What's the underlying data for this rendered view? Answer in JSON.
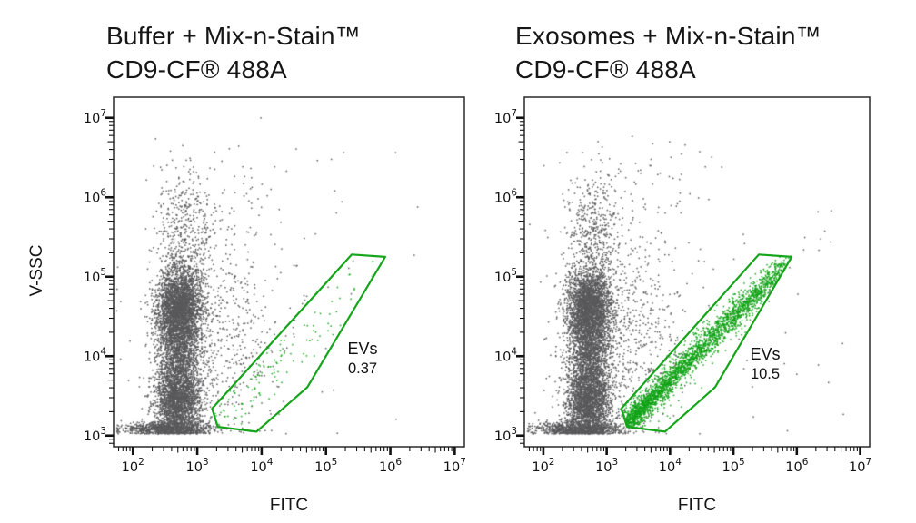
{
  "figure": {
    "background": "#ffffff",
    "dot_color_debris": "#59595b",
    "dot_color_events": "#12a317",
    "gate_color": "#16a51a"
  },
  "panels": [
    {
      "title_line1": "Buffer + Mix-n-Stain™",
      "title_line2": "CD9-CF® 488A"
    },
    {
      "title_line1": "Exosomes + Mix-n-Stain™",
      "title_line2": "CD9-CF® 488A"
    }
  ],
  "chart_data": [
    {
      "type": "scatter",
      "title": "Buffer + Mix-n-Stain™ CD9-CF® 488A",
      "xlabel": "FITC",
      "ylabel": "V-SSC",
      "x_scale": "log",
      "y_scale": "log",
      "x_tick_exponents": [
        2,
        3,
        4,
        5,
        6,
        7
      ],
      "y_tick_exponents": [
        3,
        4,
        5,
        6,
        7
      ],
      "xlim_log": [
        1.7,
        7.15
      ],
      "ylim_log": [
        2.86,
        7.26
      ],
      "grid": false,
      "gate": {
        "label": "EVs",
        "percent": 0.37,
        "percent_label": "0.37",
        "vertices_log": [
          [
            5.4,
            5.28
          ],
          [
            5.92,
            5.25
          ],
          [
            4.71,
            3.61
          ],
          [
            3.92,
            3.05
          ],
          [
            3.32,
            3.11
          ],
          [
            3.23,
            3.34
          ]
        ]
      },
      "populations": [
        {
          "name": "debris-core-upper",
          "kind": "gauss",
          "n": 2700,
          "cx": 2.71,
          "sx": 0.17,
          "cy": 4.62,
          "sy": 0.24,
          "clip_y": [
            3.03,
            7.1
          ],
          "color": "#59595b"
        },
        {
          "name": "debris-core-mid",
          "kind": "gauss",
          "n": 1400,
          "cx": 2.71,
          "sx": 0.16,
          "cy": 4.05,
          "sy": 0.28,
          "clip_y": [
            3.03,
            7.1
          ],
          "color": "#59595b"
        },
        {
          "name": "debris-core-lower",
          "kind": "gauss",
          "n": 2200,
          "cx": 2.7,
          "sx": 0.18,
          "cy": 3.42,
          "sy": 0.22,
          "clip_y": [
            3.03,
            7.1
          ],
          "color": "#59595b"
        },
        {
          "name": "debris-bottom-strip",
          "kind": "gauss",
          "n": 900,
          "cx": 2.55,
          "sx": 0.35,
          "cy": 3.09,
          "sy": 0.045,
          "clip_y": [
            3.03,
            7.1
          ],
          "color": "#59595b"
        },
        {
          "name": "debris-upper-tail",
          "kind": "gauss",
          "n": 520,
          "cx": 2.8,
          "sx": 0.22,
          "cy": 5.45,
          "sy": 0.45,
          "clip_y": [
            3.03,
            6.95
          ],
          "color": "#59595b"
        },
        {
          "name": "debris-right-scatter",
          "kind": "gauss",
          "n": 620,
          "cx": 3.25,
          "sx": 0.5,
          "cy": 4.25,
          "sy": 0.6,
          "clip_y": [
            3.03,
            7.0
          ],
          "color": "#59595b"
        },
        {
          "name": "debris-sparse-high",
          "kind": "gauss",
          "n": 85,
          "cx": 3.5,
          "sx": 0.7,
          "cy": 5.9,
          "sy": 0.55,
          "clip_y": [
            3.03,
            7.05
          ],
          "color": "#59595b"
        },
        {
          "name": "debris-far-sparse",
          "kind": "gauss",
          "n": 55,
          "cx": 4.1,
          "sx": 1.1,
          "cy": 4.6,
          "sy": 1.0,
          "clip_y": [
            3.03,
            7.1
          ],
          "color": "#59595b"
        },
        {
          "name": "ev-events",
          "kind": "band",
          "n": 130,
          "x0": 3.3,
          "x1": 5.6,
          "skew": 1.3,
          "slope": 0.78,
          "y_at_x0": 3.18,
          "sx": 0.15,
          "sy": 0.2,
          "clip_y": [
            3.05,
            7.0
          ],
          "clip_gate": true,
          "color": "#12a317"
        }
      ]
    },
    {
      "type": "scatter",
      "title": "Exosomes + Mix-n-Stain™ CD9-CF® 488A",
      "xlabel": "FITC",
      "ylabel": "V-SSC",
      "x_scale": "log",
      "y_scale": "log",
      "x_tick_exponents": [
        2,
        3,
        4,
        5,
        6,
        7
      ],
      "y_tick_exponents": [
        3,
        4,
        5,
        6,
        7
      ],
      "xlim_log": [
        1.7,
        7.15
      ],
      "ylim_log": [
        2.86,
        7.26
      ],
      "grid": false,
      "gate": {
        "label": "EVs",
        "percent": 10.5,
        "percent_label": "10.5",
        "vertices_log": [
          [
            5.4,
            5.28
          ],
          [
            5.92,
            5.25
          ],
          [
            4.71,
            3.61
          ],
          [
            3.92,
            3.05
          ],
          [
            3.32,
            3.11
          ],
          [
            3.23,
            3.34
          ]
        ]
      },
      "populations": [
        {
          "name": "debris-core-upper",
          "kind": "gauss",
          "n": 2700,
          "cx": 2.71,
          "sx": 0.17,
          "cy": 4.62,
          "sy": 0.24,
          "clip_y": [
            3.03,
            7.1
          ],
          "color": "#59595b"
        },
        {
          "name": "debris-core-mid",
          "kind": "gauss",
          "n": 1400,
          "cx": 2.71,
          "sx": 0.16,
          "cy": 4.05,
          "sy": 0.28,
          "clip_y": [
            3.03,
            7.1
          ],
          "color": "#59595b"
        },
        {
          "name": "debris-core-lower",
          "kind": "gauss",
          "n": 2200,
          "cx": 2.7,
          "sx": 0.18,
          "cy": 3.42,
          "sy": 0.22,
          "clip_y": [
            3.03,
            7.1
          ],
          "color": "#59595b"
        },
        {
          "name": "debris-bottom-strip",
          "kind": "gauss",
          "n": 900,
          "cx": 2.55,
          "sx": 0.35,
          "cy": 3.09,
          "sy": 0.045,
          "clip_y": [
            3.03,
            7.1
          ],
          "color": "#59595b"
        },
        {
          "name": "debris-upper-tail",
          "kind": "gauss",
          "n": 520,
          "cx": 2.8,
          "sx": 0.22,
          "cy": 5.45,
          "sy": 0.45,
          "clip_y": [
            3.03,
            6.95
          ],
          "color": "#59595b"
        },
        {
          "name": "debris-right-scatter",
          "kind": "gauss",
          "n": 620,
          "cx": 3.25,
          "sx": 0.5,
          "cy": 4.25,
          "sy": 0.6,
          "clip_y": [
            3.03,
            7.0
          ],
          "color": "#59595b"
        },
        {
          "name": "debris-sparse-high",
          "kind": "gauss",
          "n": 85,
          "cx": 3.5,
          "sx": 0.7,
          "cy": 5.9,
          "sy": 0.55,
          "clip_y": [
            3.03,
            7.05
          ],
          "color": "#59595b"
        },
        {
          "name": "debris-far-sparse",
          "kind": "gauss",
          "n": 55,
          "cx": 4.1,
          "sx": 1.1,
          "cy": 4.6,
          "sy": 1.0,
          "clip_y": [
            3.03,
            7.1
          ],
          "color": "#59595b"
        },
        {
          "name": "debris-diagonal-high",
          "kind": "band",
          "n": 10,
          "x0": 5.85,
          "x1": 6.6,
          "skew": 1.0,
          "slope": 0.8,
          "y_at_x0": 5.2,
          "sx": 0.05,
          "sy": 0.12,
          "clip_y": [
            3.03,
            7.1
          ],
          "color": "#59595b"
        },
        {
          "name": "ev-band-dense",
          "kind": "band",
          "n": 2400,
          "x0": 3.28,
          "x1": 5.8,
          "skew": 1.55,
          "slope": 0.8,
          "y_at_x0": 3.14,
          "sx": 0.1,
          "sy": 0.085,
          "clip_y": [
            3.05,
            7.0
          ],
          "clip_gate": true,
          "color": "#12a317"
        },
        {
          "name": "ev-band-halo",
          "kind": "band",
          "n": 420,
          "x0": 3.28,
          "x1": 5.7,
          "skew": 1.4,
          "slope": 0.8,
          "y_at_x0": 3.14,
          "sx": 0.12,
          "sy": 0.22,
          "clip_y": [
            3.05,
            7.0
          ],
          "clip_gate": true,
          "color": "#12a317"
        }
      ]
    }
  ]
}
